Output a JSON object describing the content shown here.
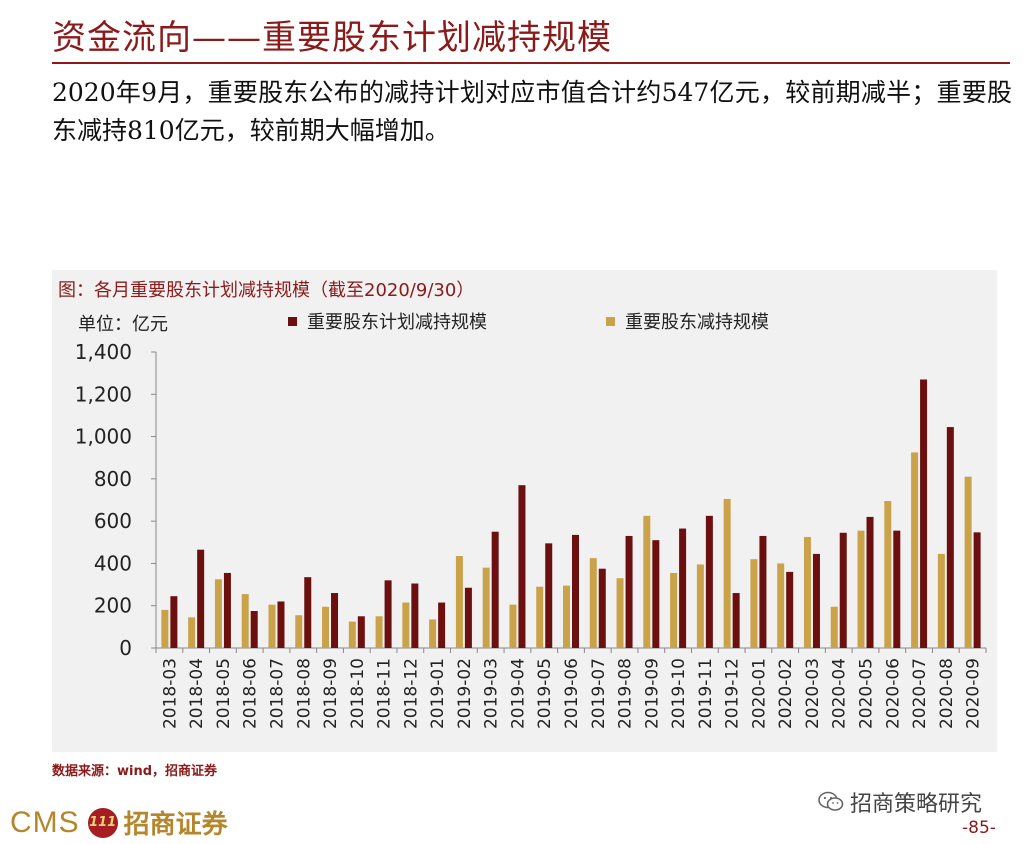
{
  "header": {
    "title": "资金流向——重要股东计划减持规模",
    "summary": "2020年9月，重要股东公布的减持计划对应市值合计约547亿元，较前期减半；重要股东减持810亿元，较前期大幅增加。"
  },
  "chart_header": {
    "title": "图：各月重要股东计划减持规模（截至2020/9/30）",
    "unit": "单位：亿元"
  },
  "colors": {
    "brand": "#8b1a1a",
    "planned": "#6b0f0f",
    "actual": "#c9a24a",
    "panel": "#f1f1f1"
  },
  "chart_data": {
    "type": "bar",
    "title": "图：各月重要股东计划减持规模（截至2020/9/30）",
    "ylabel": "单位：亿元",
    "ylim": [
      0,
      1400
    ],
    "yticks": [
      "0",
      "200",
      "400",
      "600",
      "800",
      "1,000",
      "1,200",
      "1,400"
    ],
    "grid": false,
    "legend_position": "top",
    "categories": [
      "2018-03",
      "2018-04",
      "2018-05",
      "2018-06",
      "2018-07",
      "2018-08",
      "2018-09",
      "2018-10",
      "2018-11",
      "2018-12",
      "2019-01",
      "2019-02",
      "2019-03",
      "2019-04",
      "2019-05",
      "2019-06",
      "2019-07",
      "2019-08",
      "2019-09",
      "2019-10",
      "2019-11",
      "2019-12",
      "2020-01",
      "2020-02",
      "2020-03",
      "2020-04",
      "2020-05",
      "2020-06",
      "2020-07",
      "2020-08",
      "2020-09"
    ],
    "series": [
      {
        "name": "重要股东减持规模",
        "color": "#c9a24a",
        "values": [
          180,
          145,
          325,
          255,
          205,
          155,
          195,
          125,
          150,
          215,
          135,
          435,
          380,
          205,
          290,
          295,
          425,
          330,
          625,
          355,
          395,
          705,
          420,
          400,
          525,
          195,
          555,
          695,
          925,
          445,
          810
        ]
      },
      {
        "name": "重要股东计划减持规模",
        "color": "#6b0f0f",
        "values": [
          245,
          465,
          355,
          175,
          220,
          335,
          260,
          150,
          320,
          305,
          215,
          285,
          550,
          770,
          495,
          535,
          375,
          530,
          510,
          565,
          625,
          260,
          530,
          360,
          445,
          545,
          620,
          555,
          1270,
          1045,
          547
        ]
      }
    ]
  },
  "footer": {
    "source": "数据来源：wind，招商证券",
    "logo_text": "CMS",
    "logo_emblem": "111",
    "logo_cn": "招商证券",
    "wechat_label": "招商策略研究",
    "page": "-85-"
  }
}
